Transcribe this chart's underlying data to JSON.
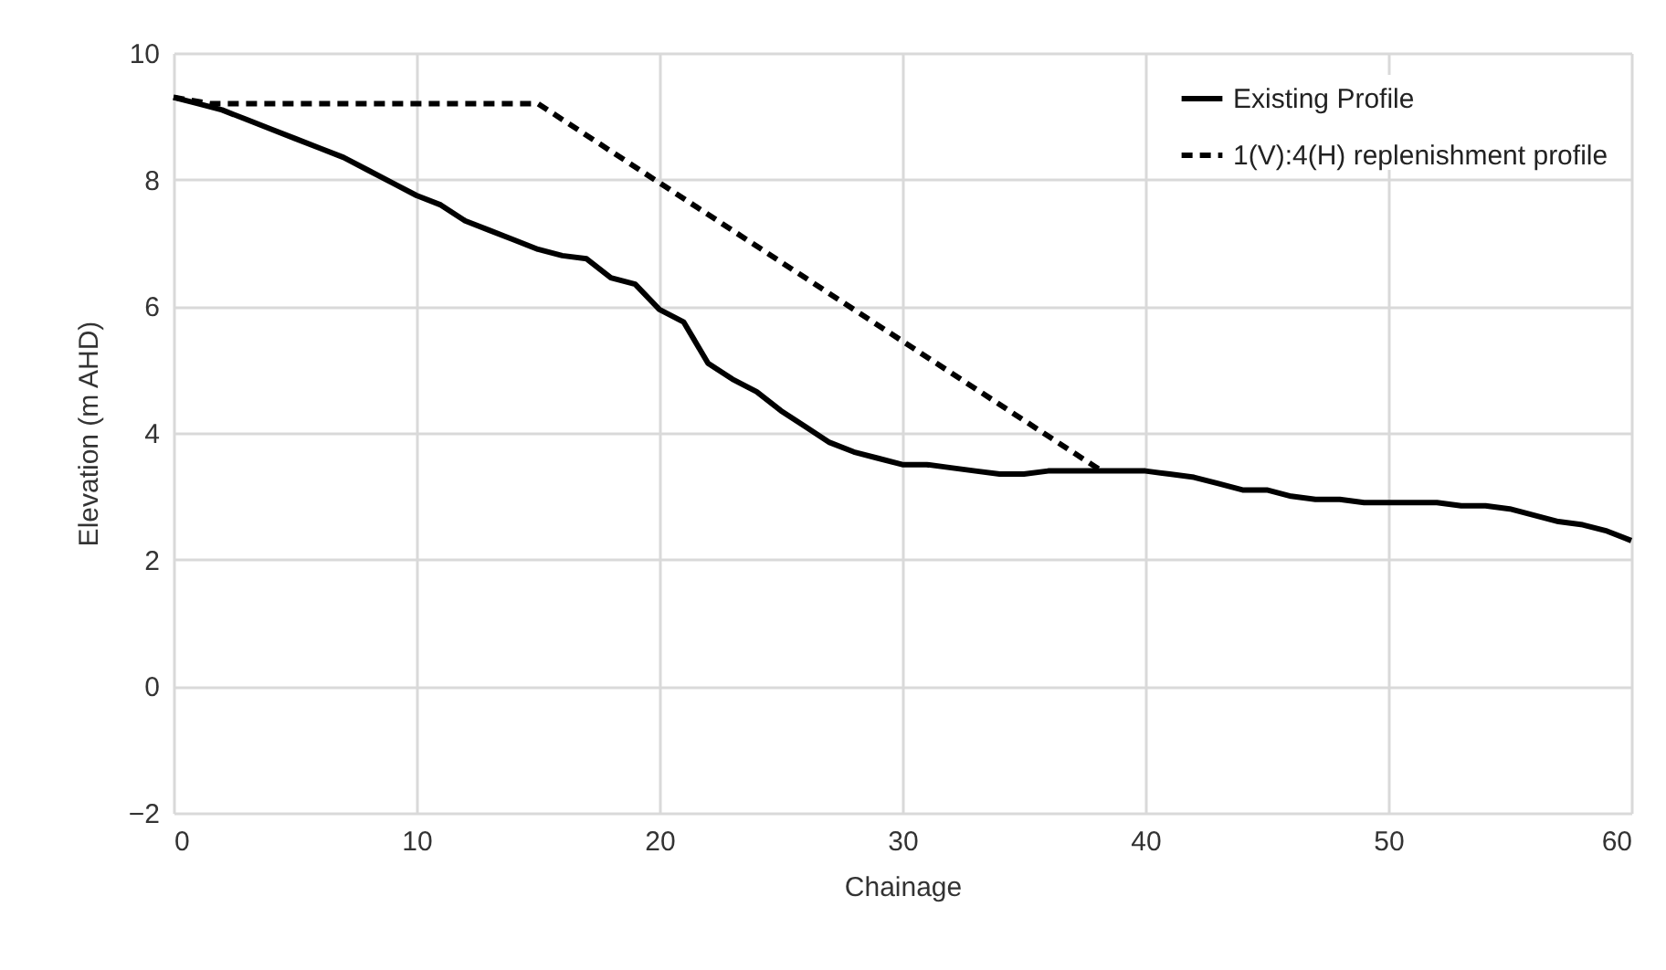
{
  "chart_data": {
    "type": "line",
    "xlabel": "Chainage",
    "ylabel": "Elevation (m AHD)",
    "xlim": [
      0,
      60
    ],
    "xticks": [
      0,
      10,
      20,
      30,
      40,
      50,
      60
    ],
    "ylim": [
      -2,
      10
    ],
    "yticks": [
      -2,
      0,
      2,
      4,
      6,
      8,
      10
    ],
    "grid": true,
    "legend": "top right",
    "marker": "none",
    "series": [
      {
        "name": "Existing Profile",
        "color": "#000000",
        "line_style": "solid",
        "x": [
          0,
          1,
          2,
          3,
          4,
          5,
          6,
          7,
          8,
          9,
          10,
          11,
          12,
          13,
          14,
          15,
          16,
          17,
          18,
          19,
          20,
          21,
          22,
          23,
          24,
          25,
          26,
          27,
          28,
          29,
          30,
          31,
          32,
          33,
          34,
          35,
          36,
          37,
          38,
          39,
          40,
          41,
          42,
          43,
          44,
          45,
          46,
          47,
          48,
          49,
          50,
          51,
          52,
          53,
          54,
          55,
          56,
          57,
          58,
          59,
          60
        ],
        "values": [
          9.3,
          9.2,
          9.1,
          8.95,
          8.8,
          8.65,
          8.5,
          8.35,
          8.15,
          7.95,
          7.75,
          7.6,
          7.35,
          7.2,
          7.05,
          6.9,
          6.8,
          6.75,
          6.45,
          6.35,
          5.95,
          5.75,
          5.1,
          4.85,
          4.65,
          4.35,
          4.1,
          3.85,
          3.7,
          3.6,
          3.5,
          3.5,
          3.45,
          3.4,
          3.35,
          3.35,
          3.4,
          3.4,
          3.4,
          3.4,
          3.4,
          3.35,
          3.3,
          3.2,
          3.1,
          3.1,
          3.0,
          2.95,
          2.95,
          2.9,
          2.9,
          2.9,
          2.9,
          2.85,
          2.85,
          2.8,
          2.7,
          2.6,
          2.55,
          2.45,
          2.3
        ]
      },
      {
        "name": "1(V):4(H) replenishment profile",
        "color": "#000000",
        "line_style": "dashed",
        "x": [
          0,
          1.5,
          15,
          38.2
        ],
        "values": [
          9.3,
          9.2,
          9.2,
          3.4
        ]
      }
    ]
  }
}
